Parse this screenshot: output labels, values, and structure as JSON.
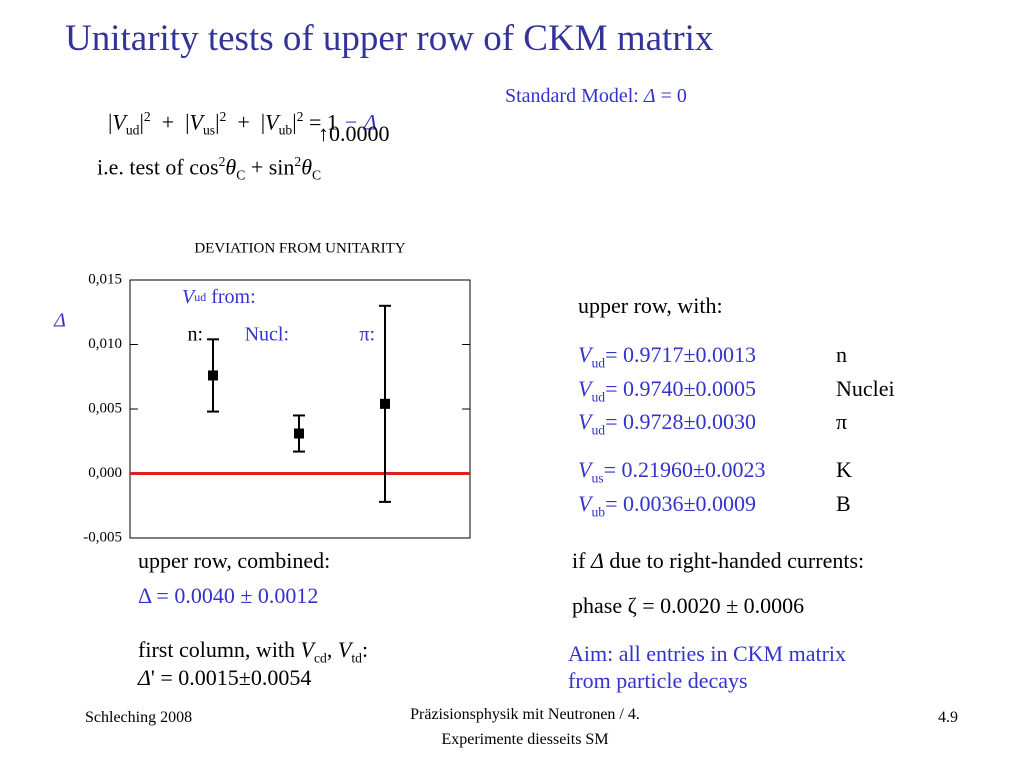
{
  "title": "Unitarity tests of upper row of CKM matrix",
  "formula": [
    "|",
    "V",
    "ud",
    "|",
    "2",
    "  +  ",
    "|",
    "V",
    "us",
    "|",
    "2",
    "  +  ",
    "|",
    "V",
    "ub",
    "|",
    "2",
    " = 1 ",
    "− Δ"
  ],
  "standard_model": [
    "Standard Model: ",
    "Δ",
    " = 0"
  ],
  "arrow_note": "↑0.0000",
  "cabibbo": [
    "i.e. test of cos",
    "2",
    "θ",
    "C",
    " + sin",
    "2",
    "θ",
    "C"
  ],
  "chart_data": {
    "type": "errorbar",
    "title": "DEVIATION FROM UNITARITY",
    "y_label": "Δ",
    "annotation": [
      "V",
      "ud",
      " from:"
    ],
    "categories": [
      "n:",
      "Nucl:",
      "π:"
    ],
    "values": [
      0.0076,
      0.0031,
      0.0054
    ],
    "errors": [
      0.0028,
      0.0014,
      0.0076
    ],
    "color": "#000000",
    "ylim": [
      -0.005,
      0.015
    ],
    "yticks": [
      {
        "value": -0.005,
        "label": "-0,005"
      },
      {
        "value": 0,
        "label": "0,000"
      },
      {
        "value": 0.005,
        "label": "0,005"
      },
      {
        "value": 0.01,
        "label": "0,010"
      },
      {
        "value": 0.015,
        "label": "0,015"
      }
    ],
    "reference_line": {
      "value": 0,
      "color": "#e02020"
    }
  },
  "upper_row": {
    "heading": "upper row, with:",
    "rows": [
      [
        "V",
        "ud",
        "= 0.9717±0.0013",
        "n"
      ],
      [
        "V",
        "ud",
        "= 0.9740±0.0005",
        "Nuclei"
      ],
      [
        "V",
        "ud",
        "= 0.9728±0.0030",
        "π"
      ],
      [
        "V",
        "us",
        "= 0.21960±0.0023",
        "K"
      ],
      [
        "V",
        "ub",
        "= 0.0036±0.0009",
        "B"
      ]
    ]
  },
  "combined": {
    "heading": "upper row, combined:",
    "result": "Δ = 0.0040 ± 0.0012"
  },
  "right_handed": {
    "heading": [
      "if ",
      "Δ",
      " due to right-handed currents:"
    ],
    "phase": "phase ζ = 0.0020 ± 0.0006"
  },
  "first_column": {
    "heading": [
      "first column, with ",
      "V",
      "cd",
      ", ",
      "V",
      "td",
      ":"
    ],
    "result": [
      "Δ",
      "' = 0.0015±0.0054"
    ]
  },
  "aim": [
    "Aim: all entries in CKM matrix",
    "from particle decays"
  ],
  "footer": {
    "left": "Schleching 2008",
    "center": [
      "Präzisionsphysik mit Neutronen / 4.",
      "Experimente diesseits SM"
    ],
    "right": "4.9"
  }
}
